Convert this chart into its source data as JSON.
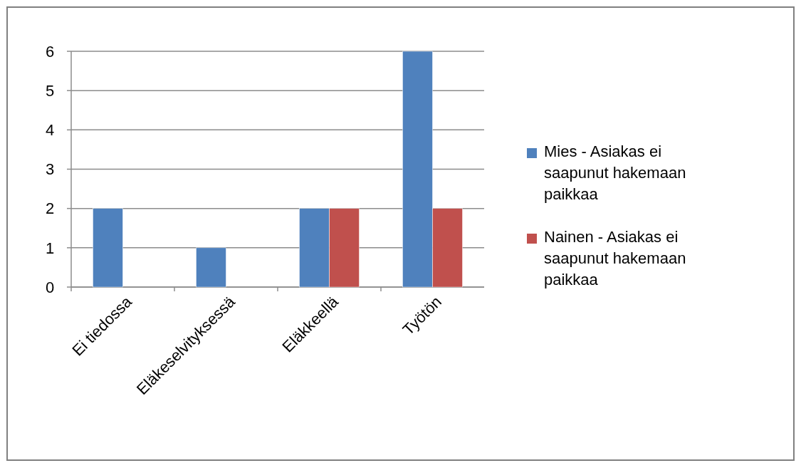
{
  "chart_data": {
    "type": "bar",
    "categories": [
      "Ei tiedossa",
      "Eläkeselvityksessä",
      "Eläkkeellä",
      "Työtön"
    ],
    "series": [
      {
        "name": "Mies - Asiakas ei saapunut hakemaan paikkaa",
        "color": "#4f81bd",
        "values": [
          2,
          1,
          2,
          6
        ]
      },
      {
        "name": "Nainen - Asiakas ei saapunut hakemaan paikkaa",
        "color": "#c0504d",
        "values": [
          null,
          null,
          2,
          2
        ]
      }
    ],
    "ylim": [
      0,
      6
    ],
    "yticks": [
      0,
      1,
      2,
      3,
      4,
      5,
      6
    ],
    "grid": "y",
    "legend": "right"
  }
}
